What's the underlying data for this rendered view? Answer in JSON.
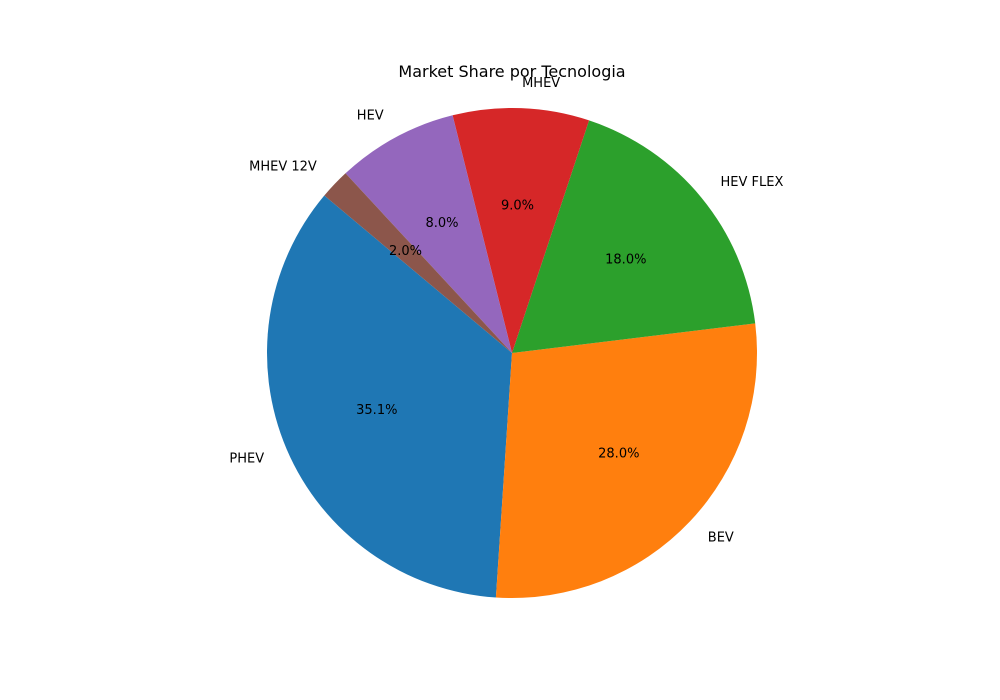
{
  "chart_data": {
    "type": "pie",
    "title": "Market Share por Tecnologia",
    "start_angle_deg": 140,
    "direction": "counterclockwise",
    "legend": "none",
    "slices": [
      {
        "label": "PHEV",
        "value": 35.1,
        "pct_label": "35.1%",
        "color": "#1f77b4"
      },
      {
        "label": "BEV",
        "value": 28.0,
        "pct_label": "28.0%",
        "color": "#ff7f0e"
      },
      {
        "label": "HEV FLEX",
        "value": 18.0,
        "pct_label": "18.0%",
        "color": "#2ca02c"
      },
      {
        "label": "MHEV",
        "value": 9.0,
        "pct_label": "9.0%",
        "color": "#d62728"
      },
      {
        "label": "HEV",
        "value": 8.0,
        "pct_label": "8.0%",
        "color": "#9467bd"
      },
      {
        "label": "MHEV 12V",
        "value": 2.0,
        "pct_label": "2.0%",
        "color": "#8c564b"
      }
    ]
  }
}
